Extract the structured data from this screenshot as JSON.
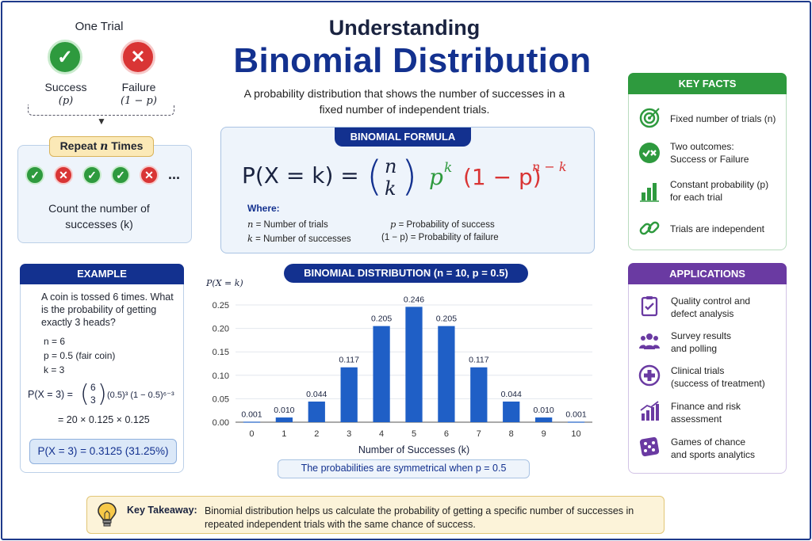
{
  "header": {
    "title_small": "Understanding",
    "title_big": "Binomial Distribution",
    "subtitle": "A probability distribution that shows the number of successes in a fixed number of independent trials."
  },
  "one_trial": {
    "title": "One Trial",
    "success_label": "Success",
    "success_param": "(p)",
    "failure_label": "Failure",
    "failure_param": "(1 − p)"
  },
  "repeat": {
    "label_prefix": "Repeat ",
    "label_var": "n",
    "label_suffix": " Times",
    "sequence": [
      "success-icon",
      "failure-icon",
      "success-icon",
      "success-icon",
      "failure-icon"
    ],
    "ellipsis": "...",
    "caption_line1": "Count the number of",
    "caption_line2": "successes (k)"
  },
  "formula": {
    "pill": "BINOMIAL FORMULA",
    "lhs": "P(X = k) =",
    "binom_top": "n",
    "binom_bottom": "k",
    "p_term": "p",
    "p_exp": "k",
    "q_term": "(1 − p)",
    "q_exp": "n − k",
    "where": "Where:",
    "defs": [
      {
        "sym": "n",
        "text": " = Number of trials"
      },
      {
        "sym": "k",
        "text": " = Number of successes"
      },
      {
        "sym": "p",
        "text": " = Probability of success"
      },
      {
        "sym": "(1 − p)",
        "text": " = Probability of failure"
      }
    ],
    "colors": {
      "p": "#2e9a3e",
      "q": "#d93535",
      "main": "#1a2340"
    }
  },
  "example": {
    "header": "EXAMPLE",
    "question": "A coin is tossed 6 times. What is the probability of getting exactly 3 heads?",
    "n_line": "n = 6",
    "p_line": "p = 0.5  (fair coin)",
    "k_line": "k = 3",
    "eq_lhs": "P(X = 3) =",
    "eq_binom_top": "6",
    "eq_binom_bottom": "3",
    "eq_rest": "(0.5)³ (1 − 0.5)⁶⁻³",
    "calc": "= 20 × 0.125 × 0.125",
    "result": "P(X = 3) = 0.3125 (31.25%)"
  },
  "chart_data": {
    "type": "bar",
    "title": "BINOMIAL DISTRIBUTION (n = 10, p = 0.5)",
    "ylabel": "P(X = k)",
    "xlabel": "Number of Successes (k)",
    "categories": [
      "0",
      "1",
      "2",
      "3",
      "4",
      "5",
      "6",
      "7",
      "8",
      "9",
      "10"
    ],
    "values": [
      0.001,
      0.01,
      0.044,
      0.117,
      0.205,
      0.246,
      0.205,
      0.117,
      0.044,
      0.01,
      0.001
    ],
    "data_labels": [
      "0.001",
      "0.010",
      "0.044",
      "0.117",
      "0.205",
      "0.246",
      "0.205",
      "0.117",
      "0.044",
      "0.010",
      "0.001"
    ],
    "yticks": [
      "0.00",
      "0.05",
      "0.10",
      "0.15",
      "0.20",
      "0.25"
    ],
    "ylim": [
      0,
      0.25
    ],
    "bar_color": "#1f5fc6",
    "grid": true,
    "note": "The probabilities are symmetrical when p = 0.5"
  },
  "key_facts": {
    "header": "KEY FACTS",
    "items": [
      {
        "icon": "target-icon",
        "line1": "Fixed number of trials (n)",
        "line2": ""
      },
      {
        "icon": "check-x-icon",
        "line1": "Two outcomes:",
        "line2": "Success or Failure"
      },
      {
        "icon": "bar-chart-icon",
        "line1": "Constant probability (p)",
        "line2": "for each trial"
      },
      {
        "icon": "link-icon",
        "line1": "Trials are independent",
        "line2": ""
      }
    ]
  },
  "applications": {
    "header": "APPLICATIONS",
    "items": [
      {
        "icon": "clipboard-check-icon",
        "line1": "Quality control and",
        "line2": "defect analysis"
      },
      {
        "icon": "people-icon",
        "line1": "Survey results",
        "line2": "and polling"
      },
      {
        "icon": "medical-cross-icon",
        "line1": "Clinical trials",
        "line2": "(success of treatment)"
      },
      {
        "icon": "growth-chart-icon",
        "line1": "Finance and risk",
        "line2": "assessment"
      },
      {
        "icon": "dice-icon",
        "line1": "Games of chance",
        "line2": "and sports analytics"
      }
    ]
  },
  "takeaway": {
    "label": "Key Takeaway:",
    "text": "Binomial distribution helps us calculate the probability of getting a specific number of successes in repeated independent trials with the same chance of success."
  },
  "colors": {
    "navy": "#13318f",
    "green": "#2e9a3e",
    "red": "#d93535",
    "purple": "#6a3aa2",
    "gold": "#e2c676"
  }
}
